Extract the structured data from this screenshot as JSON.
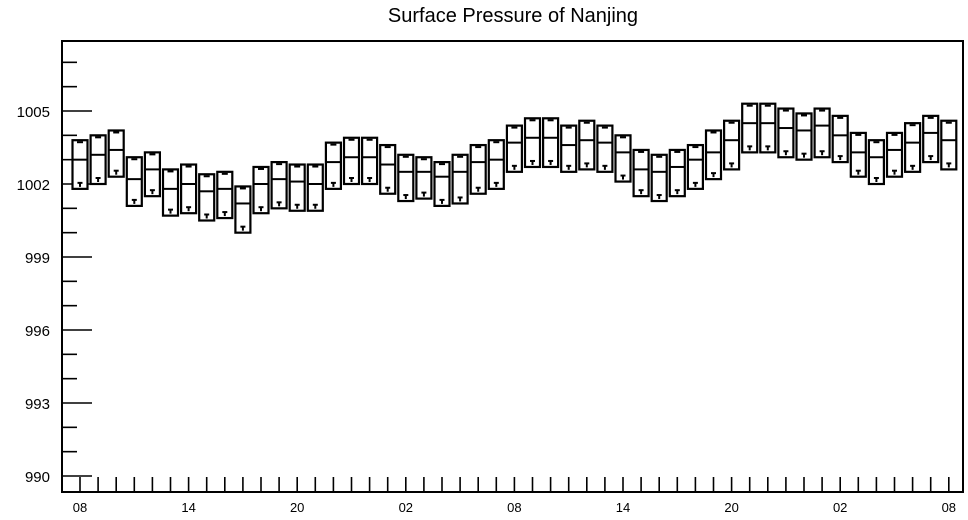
{
  "chart_data": {
    "type": "box",
    "title": "Surface Pressure of Nanjing",
    "xlabel": "",
    "ylabel": "",
    "ylim": [
      990,
      1008.2
    ],
    "yticks": [
      990,
      993,
      996,
      999,
      1002,
      1005
    ],
    "xtick_labels": [
      "08",
      "14",
      "20",
      "02",
      "08",
      "14",
      "20",
      "02",
      "08"
    ],
    "grid": false,
    "legend": "none",
    "series": [
      {
        "box_low": [
          1001.8,
          1002.0,
          1002.3,
          1001.1,
          1001.5,
          1000.7,
          1000.8,
          1000.5,
          1000.6,
          1000.0,
          1000.8,
          1001.0,
          1000.9,
          1000.9,
          1001.8,
          1002.0,
          1002.0,
          1001.6,
          1001.3,
          1001.4,
          1001.1,
          1001.2,
          1001.6,
          1001.8,
          1002.5,
          1002.7,
          1002.7,
          1002.5,
          1002.6,
          1002.5,
          1002.1,
          1001.5,
          1001.3,
          1001.5,
          1001.8,
          1002.2,
          1002.6,
          1003.3,
          1003.3,
          1003.1,
          1003.0,
          1003.1,
          1002.9,
          1002.3,
          1002.0,
          1002.3,
          1002.5,
          1002.9,
          1002.6
        ],
        "median": [
          1003.0,
          1003.2,
          1003.4,
          1002.2,
          1002.6,
          1001.8,
          1002.0,
          1001.7,
          1001.8,
          1001.2,
          1002.0,
          1002.2,
          1002.1,
          1002.0,
          1002.9,
          1003.1,
          1003.1,
          1002.8,
          1002.5,
          1002.5,
          1002.3,
          1002.5,
          1002.9,
          1003.0,
          1003.7,
          1003.9,
          1003.9,
          1003.6,
          1003.8,
          1003.7,
          1003.3,
          1002.6,
          1002.5,
          1002.7,
          1003.0,
          1003.3,
          1003.8,
          1004.5,
          1004.5,
          1004.3,
          1004.2,
          1004.4,
          1004.0,
          1003.3,
          1003.1,
          1003.4,
          1003.7,
          1004.1,
          1003.8
        ],
        "box_high": [
          1003.8,
          1004.0,
          1004.2,
          1003.1,
          1003.3,
          1002.6,
          1002.8,
          1002.4,
          1002.5,
          1001.9,
          1002.7,
          1002.9,
          1002.8,
          1002.8,
          1003.7,
          1003.9,
          1003.9,
          1003.6,
          1003.2,
          1003.1,
          1002.9,
          1003.2,
          1003.6,
          1003.8,
          1004.4,
          1004.7,
          1004.7,
          1004.4,
          1004.6,
          1004.4,
          1004.0,
          1003.4,
          1003.2,
          1003.4,
          1003.6,
          1004.2,
          1004.6,
          1005.3,
          1005.3,
          1005.1,
          1004.9,
          1005.1,
          1004.8,
          1004.1,
          1003.8,
          1004.1,
          1004.5,
          1004.8,
          1004.6
        ]
      }
    ]
  }
}
